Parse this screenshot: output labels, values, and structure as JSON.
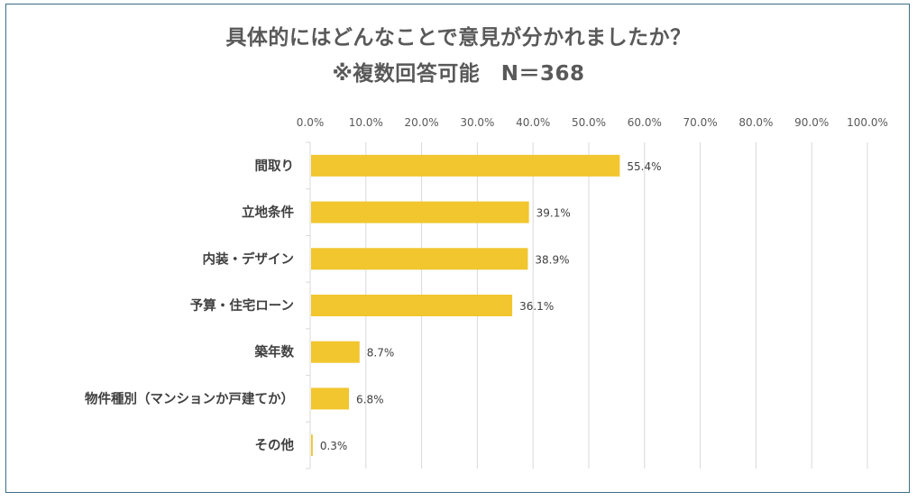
{
  "colors": {
    "bar": "#F1C62E",
    "frame": "#3C6E83",
    "grid": "#D9D9D9",
    "text": "#595959"
  },
  "chart_data": {
    "type": "bar",
    "orientation": "horizontal",
    "title": "具体的にはどんなことで意見が分かれましたか？",
    "subtitle": "※複数回答可能　N＝368",
    "categories": [
      "間取り",
      "立地条件",
      "内装・デザイン",
      "予算・住宅ローン",
      "築年数",
      "物件種別（マンションか戸建てか）",
      "その他"
    ],
    "values": [
      55.4,
      39.1,
      38.9,
      36.1,
      8.7,
      6.8,
      0.3
    ],
    "value_labels": [
      "55.4%",
      "39.1%",
      "38.9%",
      "36.1%",
      "8.7%",
      "6.8%",
      "0.3%"
    ],
    "xlim": [
      0,
      100
    ],
    "xticks": [
      0,
      10,
      20,
      30,
      40,
      50,
      60,
      70,
      80,
      90,
      100
    ],
    "xtick_labels": [
      "0.0%",
      "10.0%",
      "20.0%",
      "30.0%",
      "40.0%",
      "50.0%",
      "60.0%",
      "70.0%",
      "80.0%",
      "90.0%",
      "100.0%"
    ],
    "axis_position": "top",
    "grid": true,
    "legend": "none"
  }
}
